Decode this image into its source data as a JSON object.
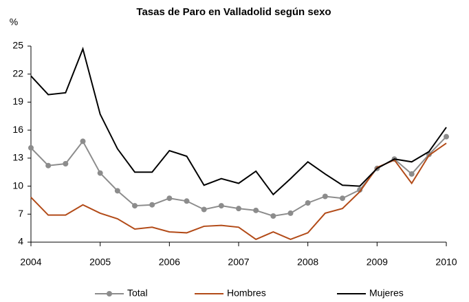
{
  "chart_data": {
    "type": "line",
    "title": "Tasas de Paro en Valladolid según sexo",
    "ylabel": "%",
    "categories": [
      "2004",
      null,
      null,
      null,
      "2005",
      null,
      null,
      null,
      "2006",
      null,
      null,
      null,
      "2007",
      null,
      null,
      null,
      "2008",
      null,
      null,
      null,
      "2009",
      null,
      null,
      null,
      "2010"
    ],
    "series": [
      {
        "name": "Total",
        "color": "#8c8c8c",
        "marker": "circle",
        "values": [
          14.1,
          12.2,
          12.4,
          14.8,
          11.4,
          9.5,
          7.9,
          8.0,
          8.7,
          8.4,
          7.5,
          7.9,
          7.6,
          7.4,
          6.8,
          7.1,
          8.2,
          8.9,
          8.7,
          9.6,
          11.9,
          12.9,
          11.3,
          13.4,
          15.3
        ]
      },
      {
        "name": "Hombres",
        "color": "#b24a17",
        "values": [
          8.8,
          6.9,
          6.9,
          8.0,
          7.1,
          6.5,
          5.4,
          5.6,
          5.1,
          5.0,
          5.7,
          5.8,
          5.6,
          4.3,
          5.1,
          4.3,
          5.0,
          7.1,
          7.6,
          9.4,
          12.0,
          12.8,
          10.3,
          13.3,
          14.6
        ]
      },
      {
        "name": "Mujeres",
        "color": "#000000",
        "values": [
          21.8,
          19.8,
          20.0,
          24.7,
          17.7,
          14.0,
          11.5,
          11.5,
          13.8,
          13.2,
          10.1,
          10.8,
          10.3,
          11.6,
          9.1,
          10.8,
          12.6,
          11.3,
          10.1,
          10.0,
          11.9,
          12.9,
          12.6,
          13.7,
          16.3
        ]
      }
    ],
    "ylim": [
      4,
      25
    ],
    "yticks": [
      4,
      7,
      10,
      13,
      16,
      19,
      22,
      25
    ],
    "grid": false,
    "legend": "bottom"
  }
}
